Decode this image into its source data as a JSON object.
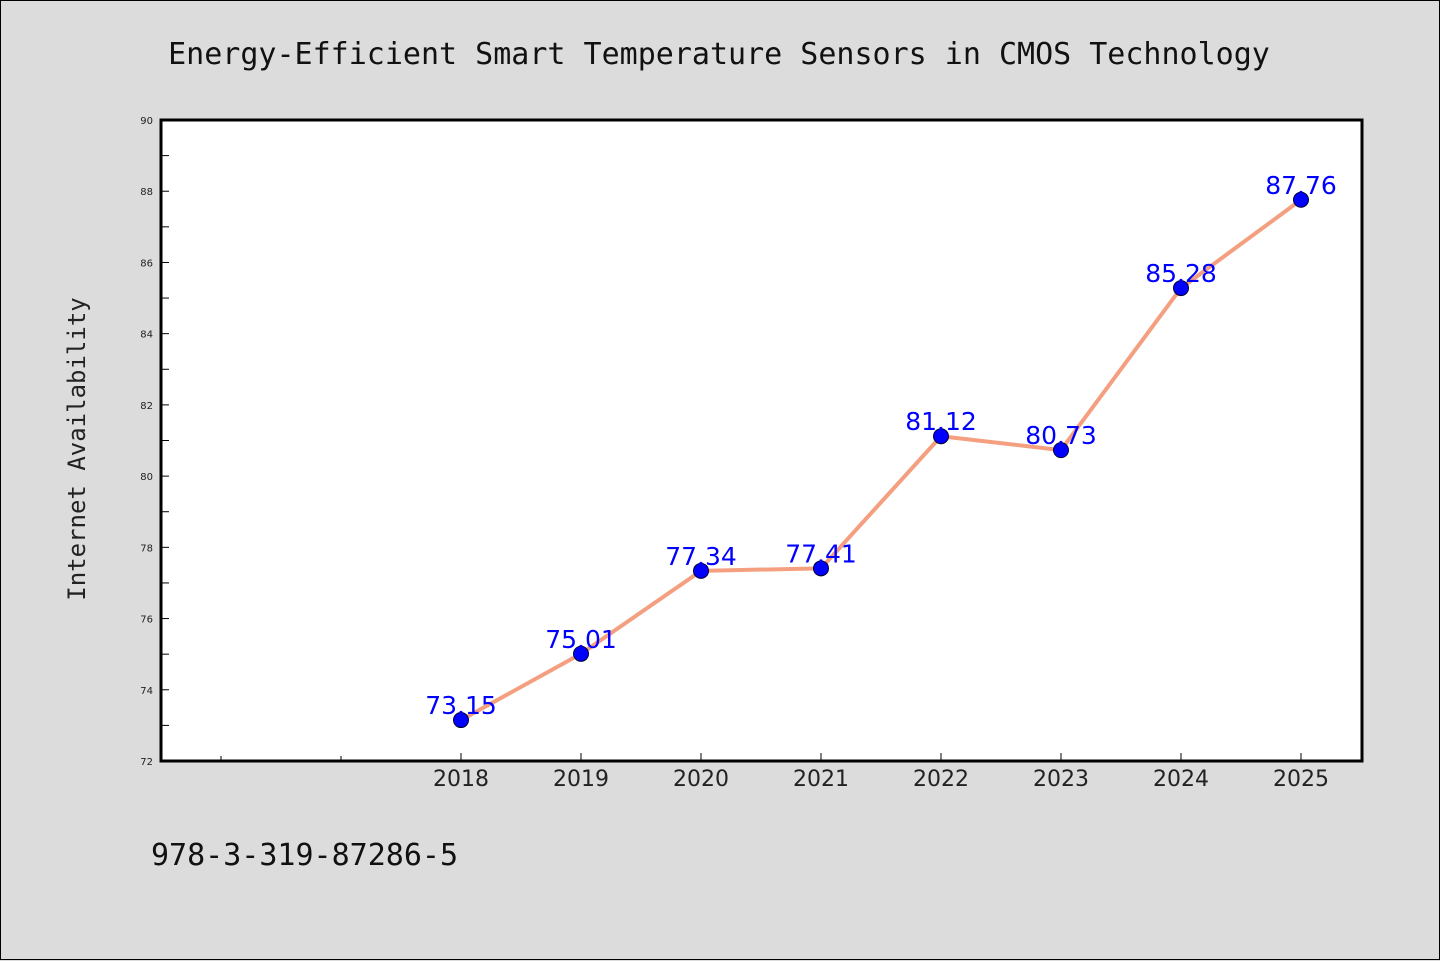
{
  "footer_text": "978-3-319-87286-5",
  "chart_data": {
    "type": "line",
    "title": "Energy-Efficient Smart Temperature Sensors in CMOS Technology",
    "ylabel": "Internet Availability",
    "xlabel": "",
    "x": [
      "2018",
      "2019",
      "2020",
      "2021",
      "2022",
      "2023",
      "2024",
      "2025"
    ],
    "values": [
      73.15,
      75.01,
      77.34,
      77.41,
      81.12,
      80.73,
      85.28,
      87.76
    ],
    "data_labels": [
      "73.15",
      "75.01",
      "77.34",
      "77.41",
      "81.12",
      "80.73",
      "85.28",
      "87.76"
    ],
    "ylim": [
      72,
      90
    ],
    "yticks": [
      "72",
      "74",
      "76",
      "78",
      "80",
      "82",
      "84",
      "86",
      "88",
      "90"
    ],
    "grid": false,
    "legend": "none",
    "line_color": "#f4a080",
    "marker_color": "#0000ff",
    "label_color": "#0000ff",
    "plot_background": "#ffffff",
    "figure_background": "#dcdcdc"
  }
}
